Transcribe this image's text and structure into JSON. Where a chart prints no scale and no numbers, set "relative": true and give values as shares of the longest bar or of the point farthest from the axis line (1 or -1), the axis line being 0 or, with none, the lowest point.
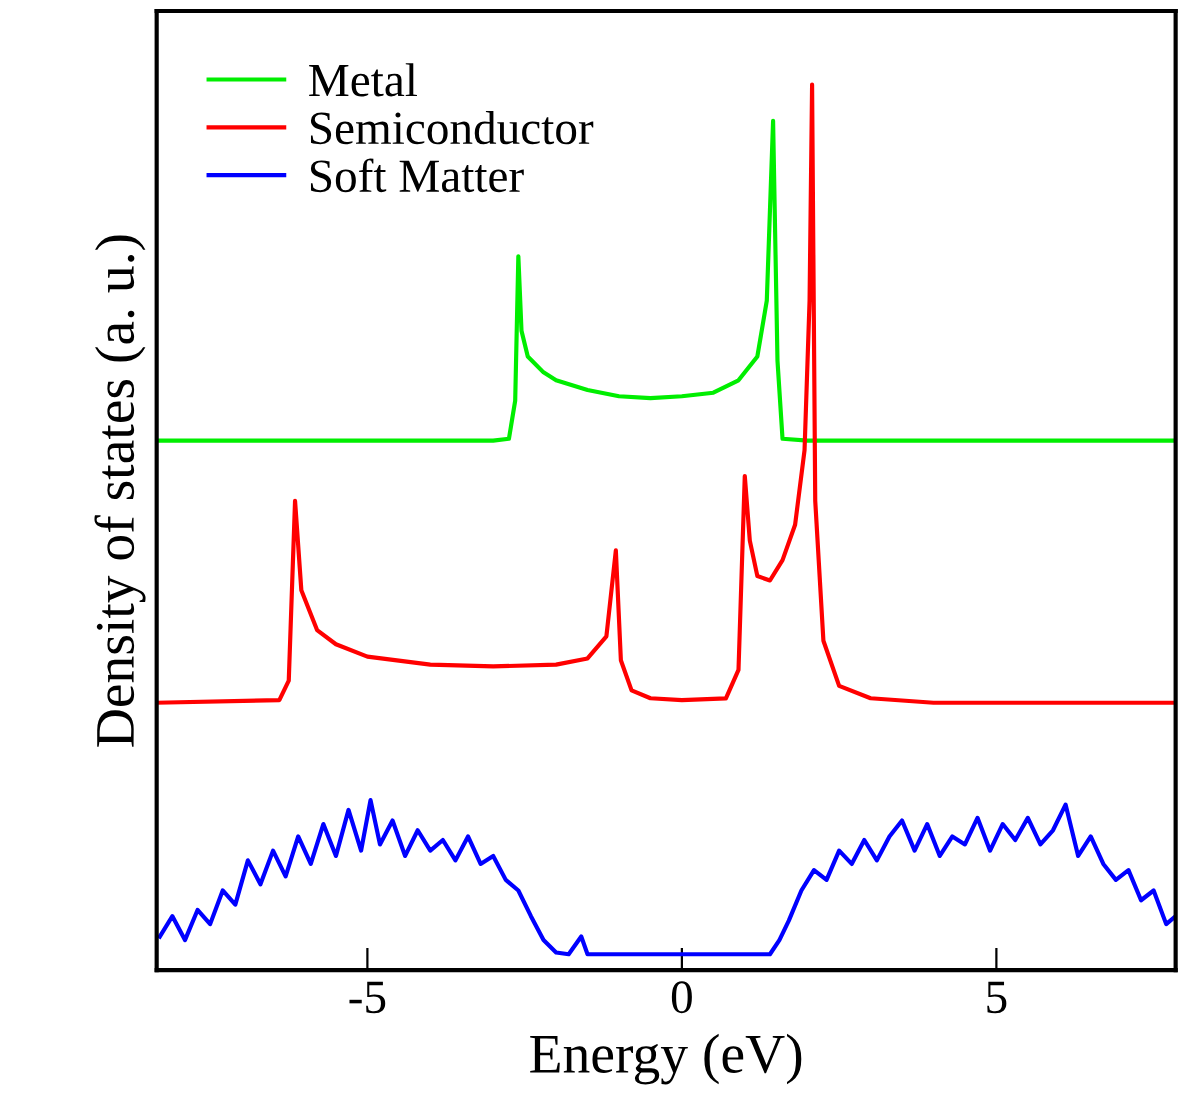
{
  "chart_data": {
    "type": "line",
    "relative": true,
    "xlabel": "Energy (eV)",
    "ylabel": "Density of states (a. u.)",
    "xlim": [
      -8.35,
      7.85
    ],
    "xticks": [
      -5,
      0,
      5
    ],
    "grid": false,
    "legend": "top left",
    "marker": "none",
    "line_style": "solid",
    "series": [
      {
        "name": "Metal",
        "color": "#00ee00",
        "x": [
          -8.35,
          -3,
          -2.75,
          -2.65,
          -2.6,
          -2.55,
          -2.45,
          -2.2,
          -2,
          -1.5,
          -1,
          -0.5,
          0,
          0.5,
          0.9,
          1.2,
          1.35,
          1.45,
          1.52,
          1.6,
          2,
          7.85
        ],
        "values": [
          0.598,
          0.598,
          0.6,
          0.643,
          0.806,
          0.722,
          0.693,
          0.675,
          0.666,
          0.655,
          0.648,
          0.646,
          0.648,
          0.652,
          0.666,
          0.693,
          0.756,
          0.959,
          0.688,
          0.6,
          0.598,
          0.598
        ]
      },
      {
        "name": "Semiconductor",
        "color": "#ff0000",
        "x": [
          -8.35,
          -6.4,
          -6.25,
          -6.15,
          -6.05,
          -5.8,
          -5.5,
          -5,
          -4,
          -3,
          -2,
          -1.5,
          -1.2,
          -1.05,
          -0.97,
          -0.8,
          -0.5,
          0,
          0.7,
          0.9,
          1.0,
          1.08,
          1.2,
          1.4,
          1.6,
          1.8,
          1.95,
          2.03,
          2.07,
          2.12,
          2.25,
          2.5,
          3,
          4,
          7.85
        ],
        "values": [
          0.302,
          0.305,
          0.327,
          0.53,
          0.429,
          0.384,
          0.368,
          0.354,
          0.345,
          0.343,
          0.345,
          0.352,
          0.377,
          0.474,
          0.35,
          0.316,
          0.307,
          0.305,
          0.307,
          0.339,
          0.558,
          0.485,
          0.445,
          0.44,
          0.463,
          0.503,
          0.587,
          0.756,
          1.0,
          0.53,
          0.372,
          0.321,
          0.307,
          0.302,
          0.302
        ]
      },
      {
        "name": "Soft Matter",
        "color": "#0000ff",
        "x": [
          -8.3,
          -8.1,
          -7.9,
          -7.7,
          -7.5,
          -7.3,
          -7.1,
          -6.9,
          -6.7,
          -6.5,
          -6.3,
          -6.1,
          -5.9,
          -5.7,
          -5.5,
          -5.3,
          -5.1,
          -4.95,
          -4.8,
          -4.6,
          -4.4,
          -4.2,
          -4.0,
          -3.8,
          -3.6,
          -3.4,
          -3.2,
          -3.0,
          -2.8,
          -2.6,
          -2.4,
          -2.2,
          -2.0,
          -1.8,
          -1.6,
          -1.5,
          1.4,
          1.55,
          1.7,
          1.9,
          2.1,
          2.3,
          2.5,
          2.7,
          2.9,
          3.1,
          3.3,
          3.5,
          3.7,
          3.9,
          4.1,
          4.3,
          4.5,
          4.7,
          4.9,
          5.1,
          5.3,
          5.5,
          5.7,
          5.9,
          6.1,
          6.3,
          6.5,
          6.7,
          6.9,
          7.1,
          7.3,
          7.5,
          7.7,
          7.85
        ],
        "values": [
          0.038,
          0.061,
          0.034,
          0.068,
          0.052,
          0.09,
          0.074,
          0.124,
          0.097,
          0.135,
          0.106,
          0.151,
          0.12,
          0.165,
          0.129,
          0.181,
          0.135,
          0.192,
          0.142,
          0.169,
          0.129,
          0.158,
          0.135,
          0.147,
          0.124,
          0.151,
          0.12,
          0.129,
          0.102,
          0.09,
          0.061,
          0.034,
          0.02,
          0.018,
          0.038,
          0.018,
          0.018,
          0.034,
          0.056,
          0.09,
          0.113,
          0.102,
          0.135,
          0.12,
          0.147,
          0.124,
          0.151,
          0.169,
          0.135,
          0.165,
          0.129,
          0.151,
          0.142,
          0.172,
          0.135,
          0.165,
          0.147,
          0.172,
          0.142,
          0.158,
          0.187,
          0.129,
          0.151,
          0.12,
          0.102,
          0.113,
          0.079,
          0.09,
          0.052,
          0.061
        ]
      }
    ]
  }
}
